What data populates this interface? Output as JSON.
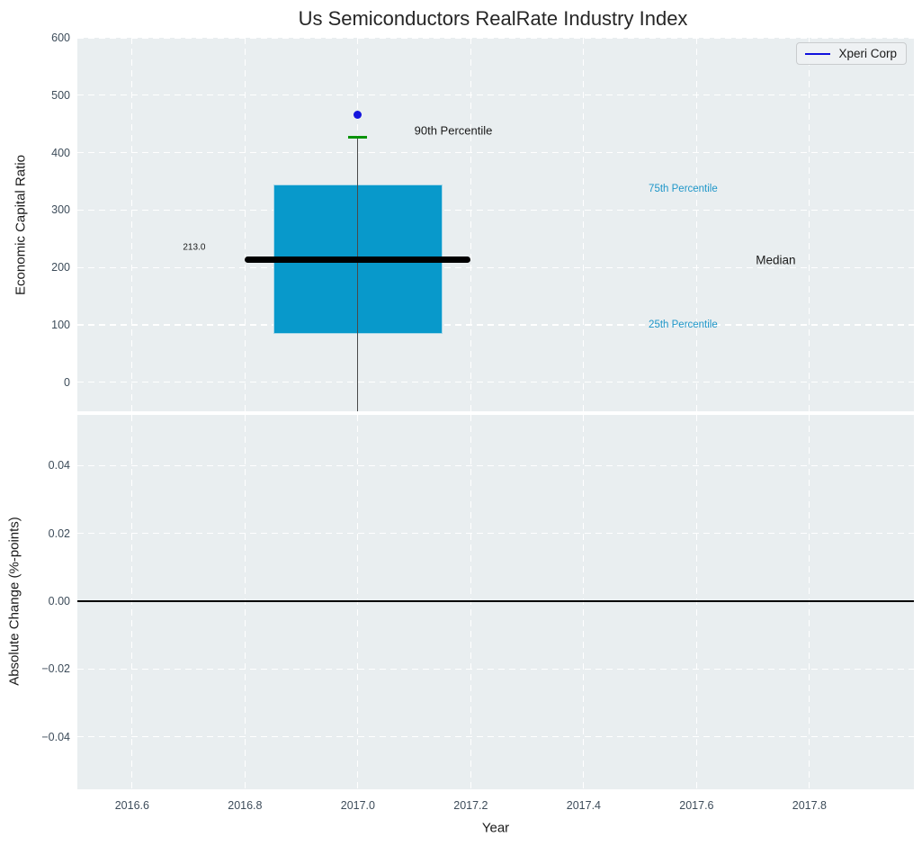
{
  "title": "Us Semiconductors RealRate Industry Index",
  "legend": {
    "label": "Xperi Corp",
    "line_color": "#1111dd"
  },
  "colors": {
    "figure_bg": "#ffffff",
    "plot_bg": "#e9eef0",
    "grid": "#ffffff",
    "tick_label": "#3d4c5a",
    "title": "#262626",
    "box_fill": "#0899cb",
    "box_edge": "#a9d7e8",
    "median_line": "#000000",
    "whisker": "#4a4a4a",
    "p90_cap": "#0a930a",
    "point": "#1414dd",
    "zero_line": "#000000"
  },
  "x_axis": {
    "label": "Year",
    "xlim": [
      2016.503,
      2017.985
    ],
    "ticks": [
      {
        "v": 2016.6,
        "label": "2016.6"
      },
      {
        "v": 2016.8,
        "label": "2016.8"
      },
      {
        "v": 2017.0,
        "label": "2017.0"
      },
      {
        "v": 2017.2,
        "label": "2017.2"
      },
      {
        "v": 2017.4,
        "label": "2017.4"
      },
      {
        "v": 2017.6,
        "label": "2017.6"
      },
      {
        "v": 2017.8,
        "label": "2017.8"
      }
    ]
  },
  "chart_data": [
    {
      "type": "box",
      "subplot": "top",
      "ylabel": "Economic Capital Ratio",
      "ylim": [
        -50.5,
        600
      ],
      "grid": true,
      "legend_position": "upper right",
      "yticks": [
        {
          "v": 0,
          "label": "0"
        },
        {
          "v": 100,
          "label": "100"
        },
        {
          "v": 200,
          "label": "200"
        },
        {
          "v": 300,
          "label": "300"
        },
        {
          "v": 400,
          "label": "400"
        },
        {
          "v": 500,
          "label": "500"
        },
        {
          "v": 600,
          "label": "600"
        }
      ],
      "box": {
        "x": 2017.0,
        "half_width": 0.15,
        "median_half_width": 0.2,
        "q25": 85,
        "median": 213.0,
        "q75": 345,
        "p90": 427,
        "whisker_low": -50.5
      },
      "point": {
        "name": "Xperi Corp",
        "x": 2017.0,
        "y": 466
      },
      "annotations": [
        {
          "text": "213.0",
          "x": 2016.71,
          "y": 235,
          "color": "#1a1a1a",
          "size": 10,
          "align": "center"
        },
        {
          "text": "90th Percentile",
          "x": 2017.1,
          "y": 438,
          "color": "#1a1a1a",
          "size": 13,
          "align": "left"
        },
        {
          "text": "75th Percentile",
          "x": 2017.515,
          "y": 337,
          "color": "#2097c9",
          "size": 11.5,
          "align": "left"
        },
        {
          "text": "Median",
          "x": 2017.705,
          "y": 213,
          "color": "#1a1a1a",
          "size": 13.5,
          "align": "left"
        },
        {
          "text": "25th Percentile",
          "x": 2017.515,
          "y": 100,
          "color": "#2097c9",
          "size": 11.5,
          "align": "left"
        }
      ]
    },
    {
      "type": "line",
      "subplot": "bottom",
      "ylabel": "Absolute Change (%-points)",
      "ylim": [
        -0.0555,
        0.055
      ],
      "grid": true,
      "yticks": [
        {
          "v": 0.04,
          "label": "0.04"
        },
        {
          "v": 0.02,
          "label": "0.02"
        },
        {
          "v": 0,
          "label": "0.00"
        },
        {
          "v": -0.02,
          "label": "−0.02"
        },
        {
          "v": -0.04,
          "label": "−0.04"
        }
      ],
      "series": [
        {
          "name": "Xperi Corp",
          "value": 0.0,
          "shape": "horizontal line across full x-range"
        }
      ]
    }
  ]
}
